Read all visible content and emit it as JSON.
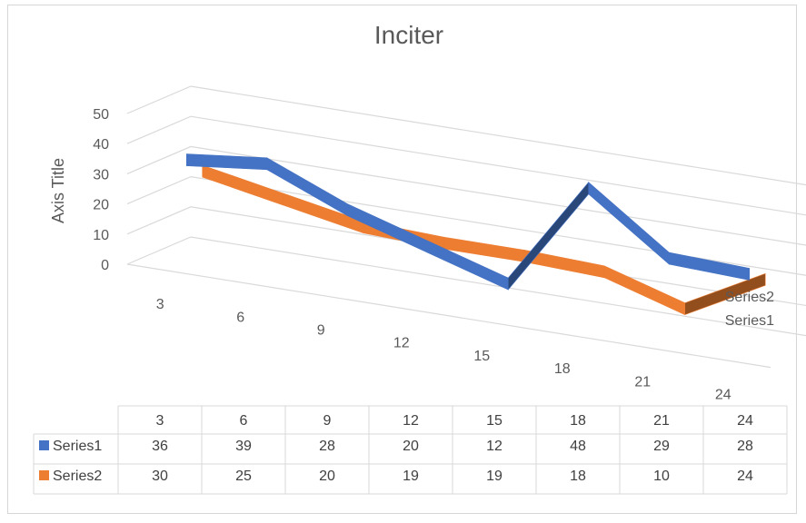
{
  "chart_data": {
    "type": "line",
    "title": "Inciter",
    "xlabel": "",
    "ylabel": "Axis Title",
    "categories": [
      "3",
      "6",
      "9",
      "12",
      "15",
      "18",
      "21",
      "24"
    ],
    "yticks": [
      "0",
      "10",
      "20",
      "30",
      "40",
      "50"
    ],
    "ylim": [
      0,
      50
    ],
    "depth_labels": [
      "Series2",
      "Series1"
    ],
    "series": [
      {
        "name": "Series1",
        "values": [
          36,
          39,
          28,
          20,
          12,
          48,
          29,
          28
        ],
        "color": "#4472C4"
      },
      {
        "name": "Series2",
        "values": [
          30,
          25,
          20,
          19,
          19,
          18,
          10,
          24
        ],
        "color": "#ED7D31"
      }
    ],
    "grid": true,
    "legend": "data-table"
  }
}
